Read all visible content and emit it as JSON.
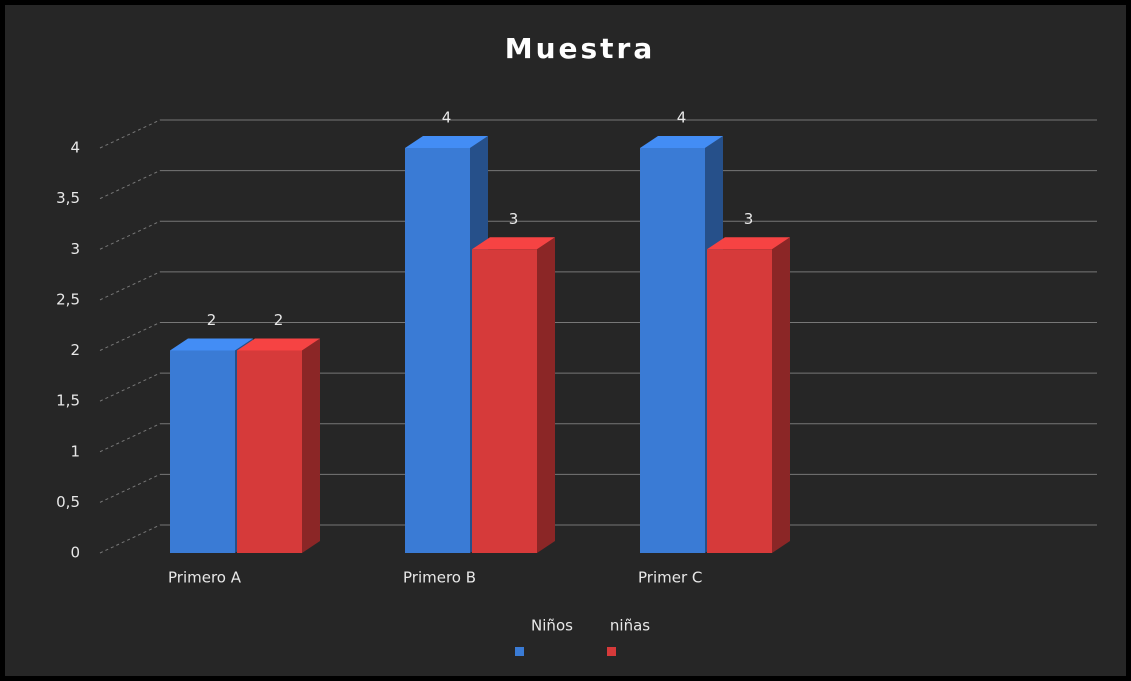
{
  "chart_data": {
    "type": "bar3d",
    "title": "Muestra",
    "categories": [
      "Primero A",
      "Primero B",
      "Primer C"
    ],
    "series": [
      {
        "name": "Niños",
        "color": "#3a7bd5",
        "values": [
          2,
          4,
          4
        ]
      },
      {
        "name": "niñas",
        "color": "#d63a3a",
        "values": [
          2,
          3,
          3
        ]
      }
    ],
    "ylim": [
      0,
      4
    ],
    "yticks": [
      0,
      {
        "value": 0.5,
        "label": "0,5"
      },
      1,
      {
        "value": 1.5,
        "label": "1,5"
      },
      2,
      {
        "value": 2.5,
        "label": "2,5"
      },
      3,
      {
        "value": 3.5,
        "label": "3,5"
      },
      4
    ],
    "grid": true,
    "legend": "bottom"
  }
}
